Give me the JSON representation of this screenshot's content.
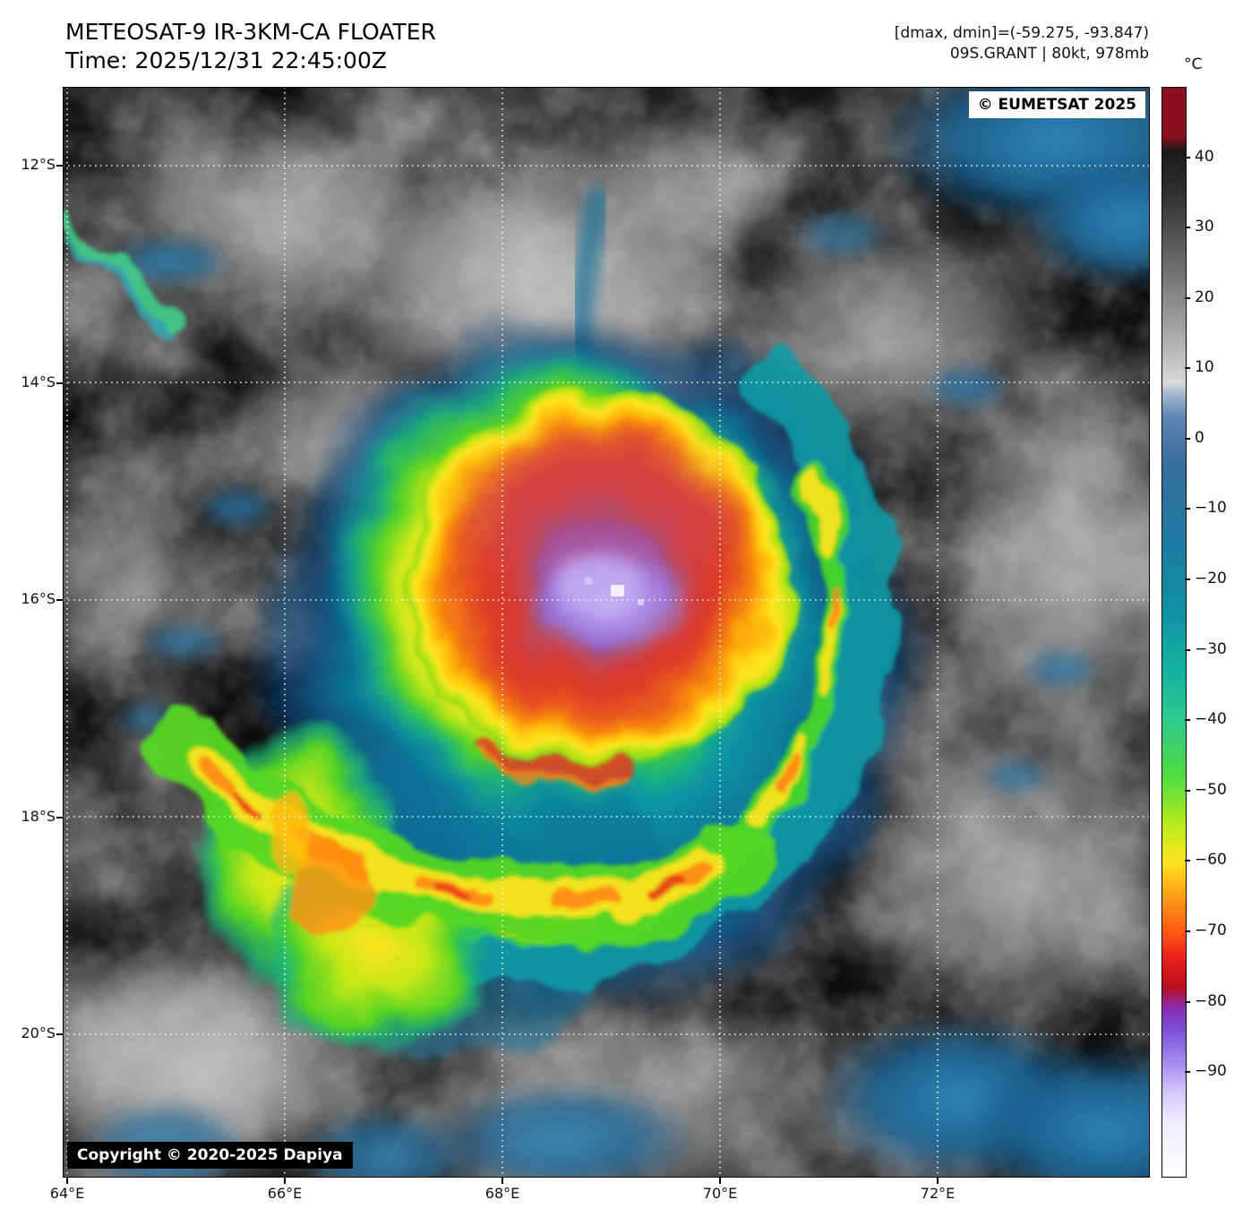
{
  "header": {
    "title_line1": "METEOSAT-9 IR-3KM-CA FLOATER",
    "title_line2": "Time: 2025/12/31 22:45:00Z",
    "dmax_dmin": "[dmax, dmin]=(-59.275, -93.847)",
    "storm_info": "09S.GRANT | 80kt, 978mb"
  },
  "map": {
    "badge": "© EUMETSAT 2025",
    "copyright": "Copyright © 2020-2025 Dapiya",
    "lat_ticks": [
      {
        "label": "12°S",
        "value": 12
      },
      {
        "label": "14°S",
        "value": 14
      },
      {
        "label": "16°S",
        "value": 16
      },
      {
        "label": "18°S",
        "value": 18
      },
      {
        "label": "20°S",
        "value": 20
      }
    ],
    "lon_ticks": [
      {
        "label": "64°E",
        "value": 64
      },
      {
        "label": "66°E",
        "value": 66
      },
      {
        "label": "68°E",
        "value": 68
      },
      {
        "label": "70°E",
        "value": 70
      },
      {
        "label": "72°E",
        "value": 72
      }
    ]
  },
  "colorbar": {
    "unit": "°C",
    "ticks": [
      {
        "label": "40",
        "value": 40
      },
      {
        "label": "30",
        "value": 30
      },
      {
        "label": "20",
        "value": 20
      },
      {
        "label": "10",
        "value": 10
      },
      {
        "label": "0",
        "value": 0
      },
      {
        "label": "−10",
        "value": -10
      },
      {
        "label": "−20",
        "value": -20
      },
      {
        "label": "−30",
        "value": -30
      },
      {
        "label": "−40",
        "value": -40
      },
      {
        "label": "−50",
        "value": -50
      },
      {
        "label": "−60",
        "value": -60
      },
      {
        "label": "−70",
        "value": -70
      },
      {
        "label": "−80",
        "value": -80
      },
      {
        "label": "−90",
        "value": -90
      }
    ]
  },
  "chart_data": {
    "type": "heatmap",
    "title": "METEOSAT-9 IR-3KM-CA FLOATER",
    "time_utc": "2025/12/31 22:45:00Z",
    "value_unit": "°C",
    "dmax": -59.275,
    "dmin": -93.847,
    "storm": {
      "id": "09S",
      "name": "GRANT",
      "wind_kt": 80,
      "pressure_mb": 978
    },
    "x_ticks": [
      "64°E",
      "66°E",
      "68°E",
      "70°E",
      "72°E"
    ],
    "y_ticks": [
      "12°S",
      "14°S",
      "16°S",
      "18°S",
      "20°S"
    ],
    "colorbar_ticks": [
      40,
      30,
      20,
      10,
      0,
      -10,
      -20,
      -30,
      -40,
      -50,
      -60,
      -70,
      -80,
      -90
    ],
    "legend_position": "right",
    "credits": [
      "© EUMETSAT 2025",
      "Copyright © 2020-2025 Dapiya"
    ]
  }
}
